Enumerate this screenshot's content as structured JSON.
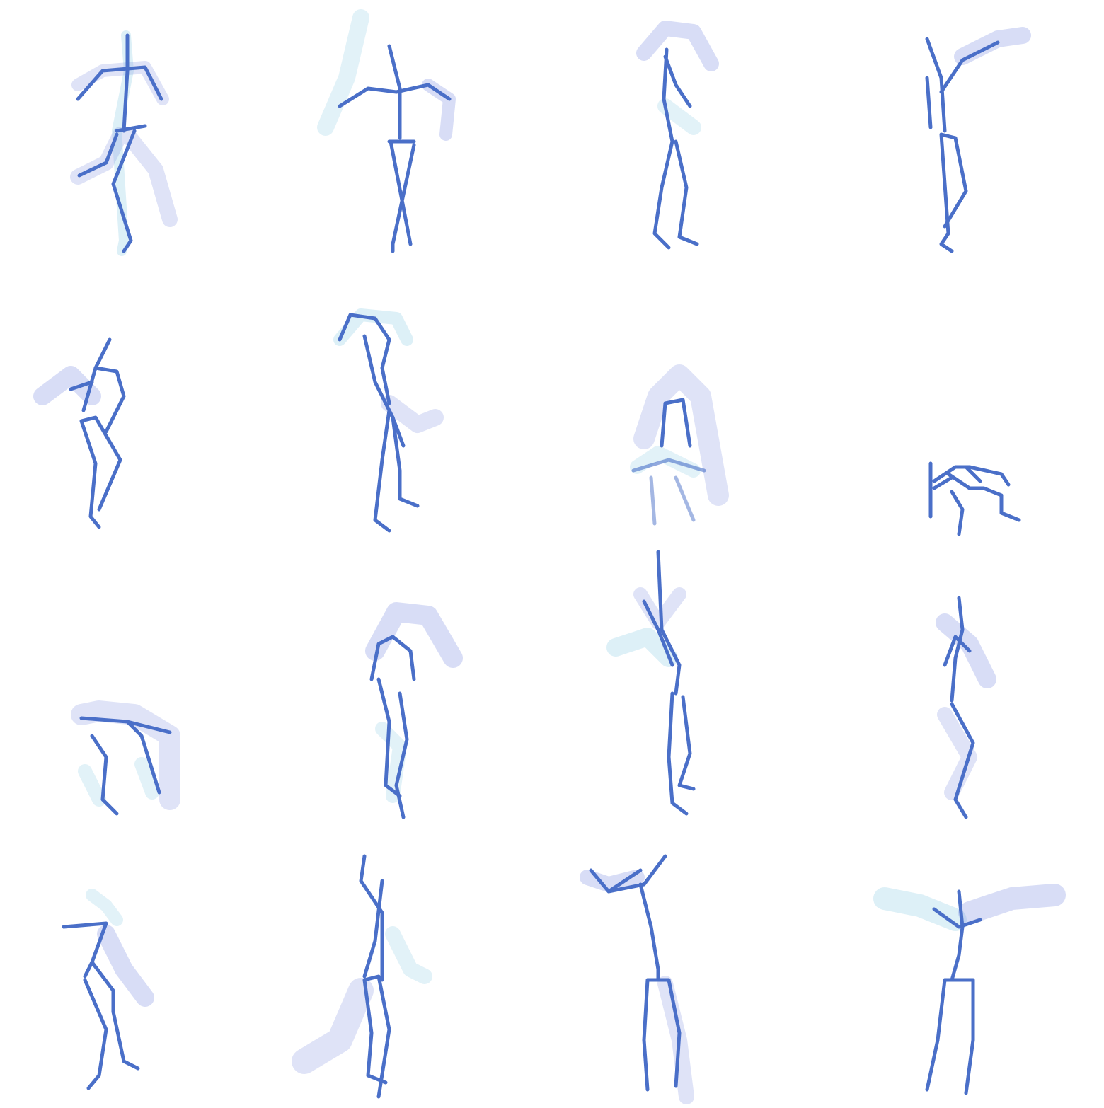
{
  "figure": {
    "columns": 4,
    "rows": 4,
    "colors": {
      "background": "#ffffff",
      "stroke": "#4a6fc8",
      "trail": "#7f8fe0",
      "trail_light": "#9fd4e8"
    },
    "panels": [
      {
        "pose": "standing-arms-out-kick"
      },
      {
        "pose": "arms-spread-crossed-legs"
      },
      {
        "pose": "arms-overhead-standing"
      },
      {
        "pose": "one-arm-raised-standing"
      },
      {
        "pose": "arm-swing-bent-knee"
      },
      {
        "pose": "leaning-arm-overhead"
      },
      {
        "pose": "crouching-blurred"
      },
      {
        "pose": "lying-low"
      },
      {
        "pose": "bent-over-blurred"
      },
      {
        "pose": "crouch-arms-swirl"
      },
      {
        "pose": "arm-straight-up"
      },
      {
        "pose": "standing-arm-swing"
      },
      {
        "pose": "arm-across-step"
      },
      {
        "pose": "arm-raised-leg-kick"
      },
      {
        "pose": "arm-forward-standing"
      },
      {
        "pose": "arms-wide-spread"
      }
    ]
  }
}
